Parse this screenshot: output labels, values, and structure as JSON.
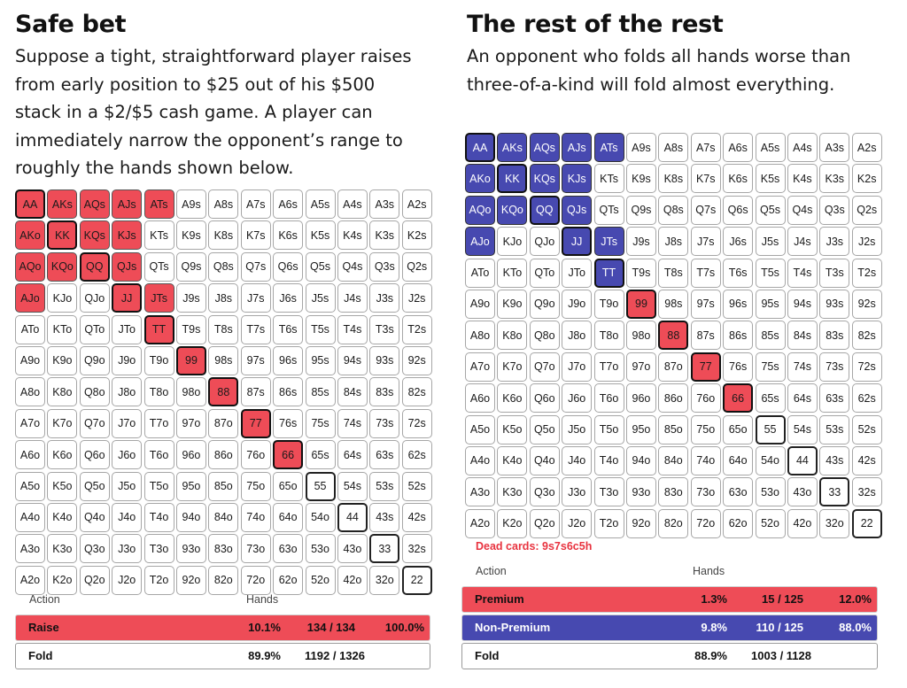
{
  "left": {
    "title": "Safe bet",
    "description": [
      "Suppose a tight, straightforward player raises",
      "from early position to $25 out of his $500",
      "stack in a $2/$5 cash game. A player can",
      "immediately narrow the opponent’s range to",
      "roughly the hands shown below."
    ],
    "highlighted_hands": [
      "AA",
      "AKs",
      "AQs",
      "AJs",
      "ATs",
      "AKo",
      "KK",
      "KQs",
      "KJs",
      "AQo",
      "KQo",
      "QQ",
      "QJs",
      "AJo",
      "JJ",
      "JTs",
      "TT",
      "99",
      "88",
      "77",
      "66"
    ],
    "table": {
      "header_action": "Action",
      "header_hands": "Hands",
      "rows": [
        {
          "label": "Raise",
          "pct": "10.1%",
          "hands": "134 / 134",
          "share": "100.0%"
        },
        {
          "label": "Fold",
          "pct": "89.9%",
          "hands": "1192 / 1326",
          "share": ""
        }
      ]
    }
  },
  "right": {
    "title": "The rest of the rest",
    "description": [
      "An opponent who folds all hands worse than",
      "three-of-a-kind  will fold almost everything."
    ],
    "premium_hands": [
      "99",
      "88",
      "77",
      "66"
    ],
    "nonpremium_hands": [
      "AA",
      "AKs",
      "AQs",
      "AJs",
      "ATs",
      "AKo",
      "KK",
      "KQs",
      "KJs",
      "AQo",
      "KQo",
      "QQ",
      "QJs",
      "AJo",
      "JJ",
      "JTs",
      "TT"
    ],
    "dead_cards": "Dead cards: 9s7s6c5h",
    "table": {
      "header_action": "Action",
      "header_hands": "Hands",
      "rows": [
        {
          "label": "Premium",
          "pct": "1.3%",
          "hands": "15 / 125",
          "share": "12.0%"
        },
        {
          "label": "Non-Premium",
          "pct": "9.8%",
          "hands": "110 / 125",
          "share": "88.0%"
        },
        {
          "label": "Fold",
          "pct": "88.9%",
          "hands": "1003 / 1128",
          "share": ""
        }
      ]
    }
  },
  "colors": {
    "raise": "#ee4c57",
    "premium": "#ee4c57",
    "non_premium": "#4749b0",
    "dead_cards_text": "#e8333f"
  }
}
